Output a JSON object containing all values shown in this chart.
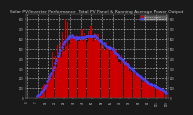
{
  "title": "Solar PV/Inverter Performance  Total PV Panel & Running Average Power Output",
  "title_fontsize": 3.2,
  "bg_color": "#1a1a1a",
  "plot_bg_color": "#1a1a1a",
  "bar_color": "#cc0000",
  "avg_color": "#4444ff",
  "grid_color": "#555555",
  "ylim": [
    0,
    850
  ],
  "num_bars": 110,
  "legend_items": [
    "Total PV Power",
    "Running Avg Power"
  ],
  "legend_colors": [
    "#cc0000",
    "#4444ff"
  ]
}
